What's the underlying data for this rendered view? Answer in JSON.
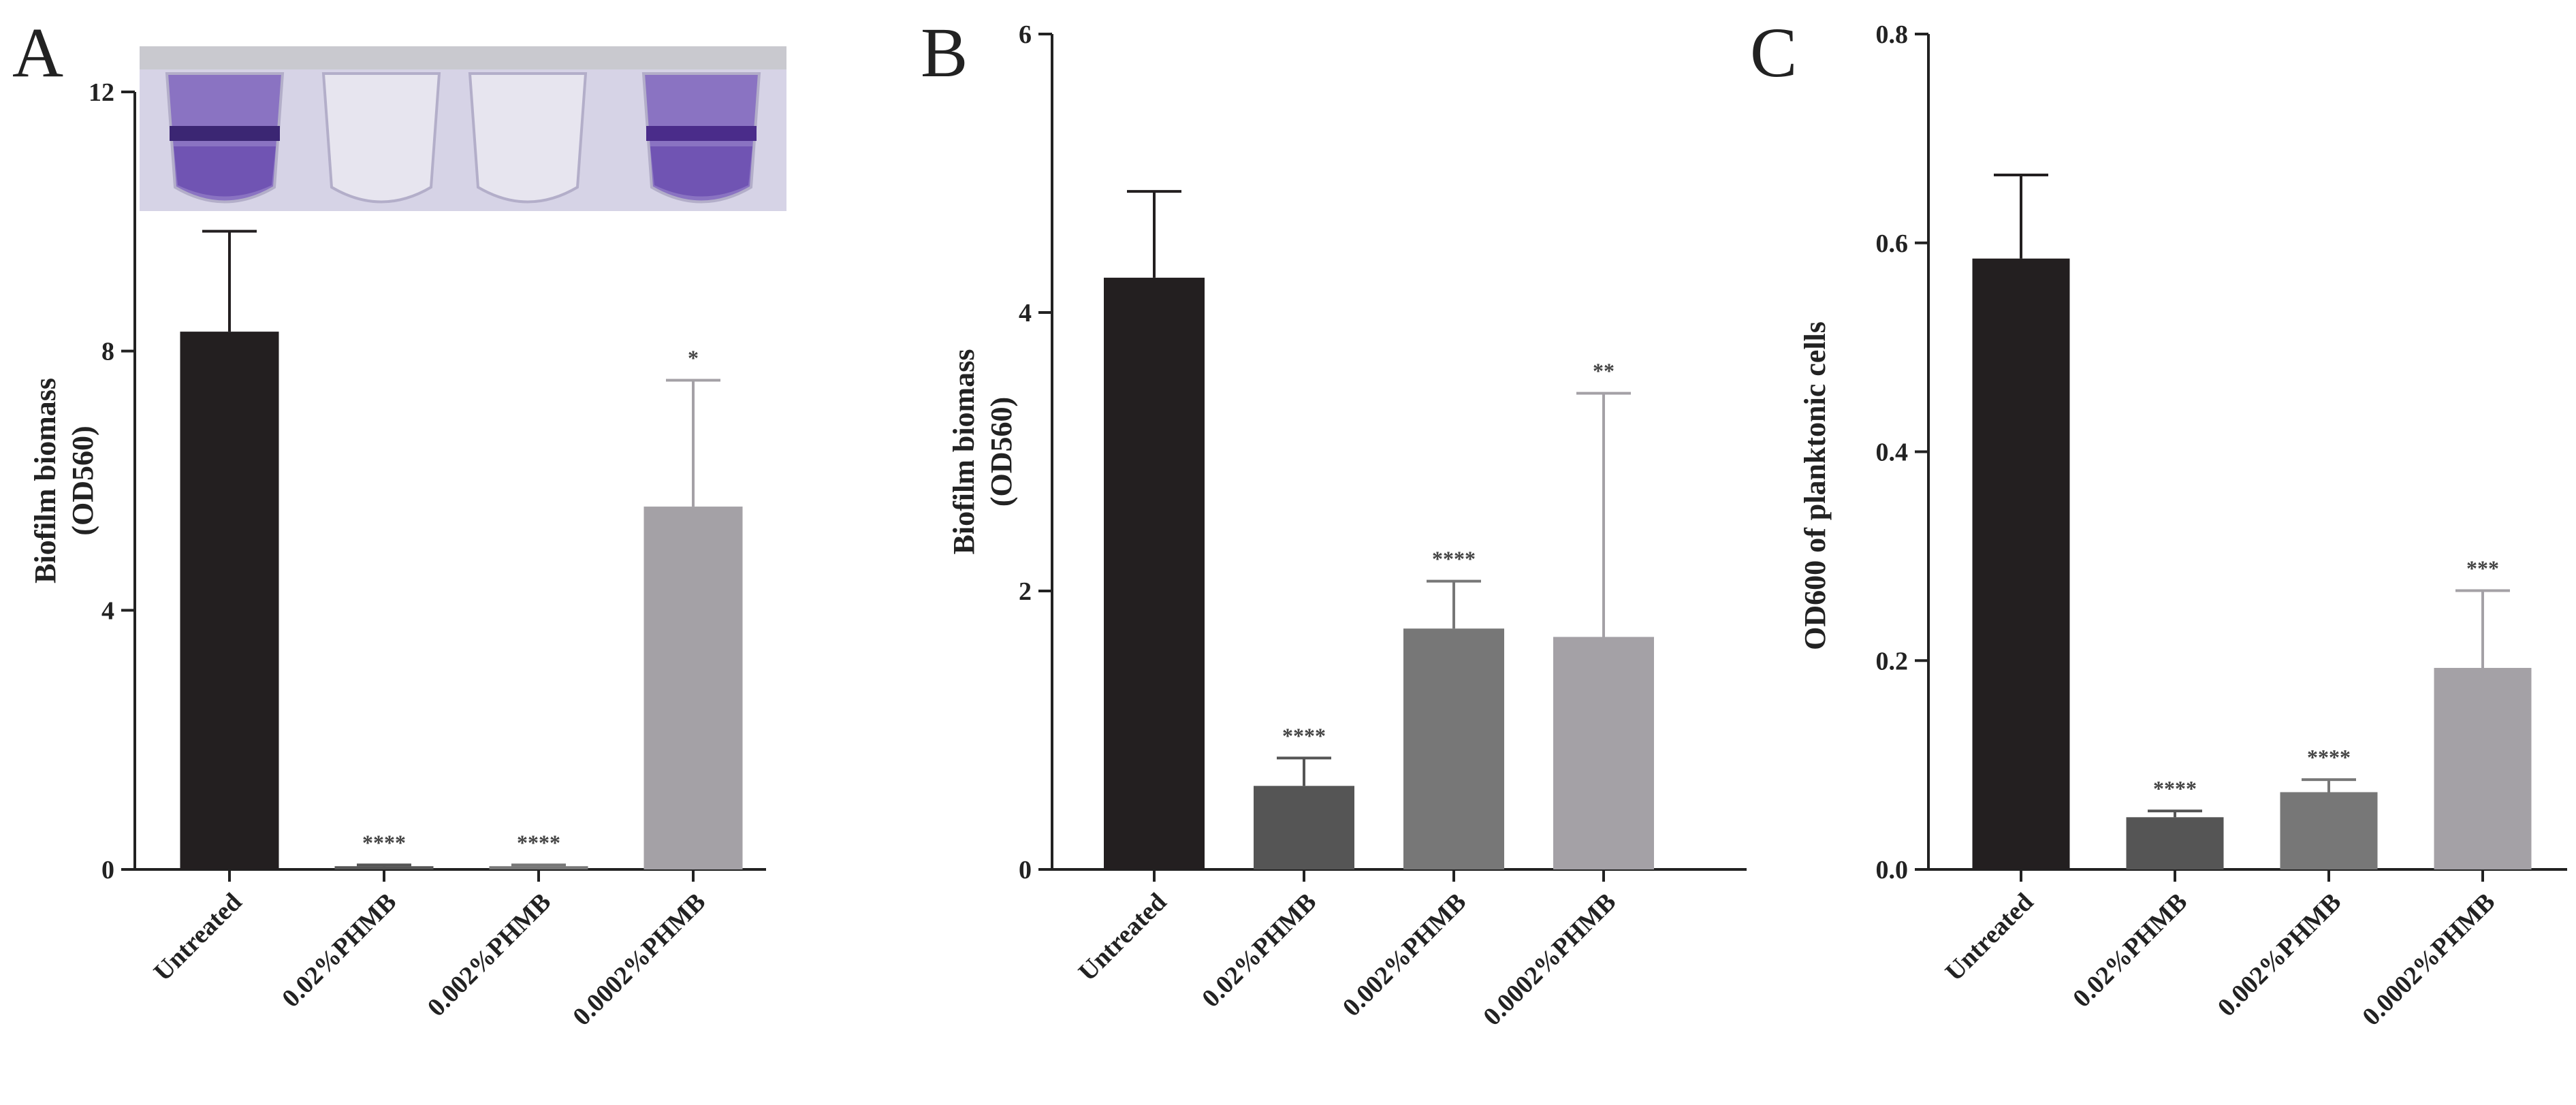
{
  "chart_data": [
    {
      "panel": "A",
      "type": "bar",
      "categories": [
        "Untreated",
        "0.02%PHMB",
        "0.002%PHMB",
        "0.0002%PHMB"
      ],
      "values": [
        8.3,
        0.05,
        0.05,
        5.6
      ],
      "errors": [
        1.55,
        0.02,
        0.02,
        1.95
      ],
      "significance": [
        "",
        "****",
        "****",
        "*"
      ],
      "colors": [
        "#231f20",
        "#555555",
        "#777777",
        "#a4a1a6"
      ],
      "ylabel_line1": "Biofilm biomass",
      "ylabel_line2": "(OD560)",
      "ylim": [
        0,
        12
      ],
      "yticks": [
        0,
        4,
        8,
        12
      ],
      "ytick_labels": [
        "0",
        "4",
        "8",
        "12"
      ],
      "inset": "photo of four crystal-violet-stained wells"
    },
    {
      "panel": "B",
      "type": "bar",
      "categories": [
        "Untreated",
        "0.02%PHMB",
        "0.002%PHMB",
        "0.0002%PHMB"
      ],
      "values": [
        4.25,
        0.6,
        1.73,
        1.67
      ],
      "errors": [
        0.62,
        0.2,
        0.34,
        1.75
      ],
      "significance": [
        "",
        "****",
        "****",
        "**"
      ],
      "colors": [
        "#231f20",
        "#555555",
        "#777777",
        "#a4a1a6"
      ],
      "ylabel_line1": "Biofilm biomass",
      "ylabel_line2": "(OD560)",
      "ylim": [
        0,
        6
      ],
      "yticks": [
        0,
        2,
        4,
        6
      ],
      "ytick_labels": [
        "0",
        "2",
        "4",
        "6"
      ]
    },
    {
      "panel": "C",
      "type": "bar",
      "categories": [
        "Untreated",
        "0.02%PHMB",
        "0.002%PHMB",
        "0.0002%PHMB"
      ],
      "values": [
        0.585,
        0.05,
        0.074,
        0.193
      ],
      "errors": [
        0.08,
        0.006,
        0.012,
        0.074
      ],
      "significance": [
        "",
        "****",
        "****",
        "***"
      ],
      "colors": [
        "#231f20",
        "#555555",
        "#777777",
        "#a4a1a6"
      ],
      "ylabel_line1": "OD600 of planktonic cells",
      "ylabel_line2": "",
      "ylim": [
        0,
        0.8
      ],
      "yticks": [
        0,
        0.2,
        0.4,
        0.6,
        0.8
      ],
      "ytick_labels": [
        "0.0",
        "0.2",
        "0.4",
        "0.6",
        "0.8"
      ]
    }
  ]
}
